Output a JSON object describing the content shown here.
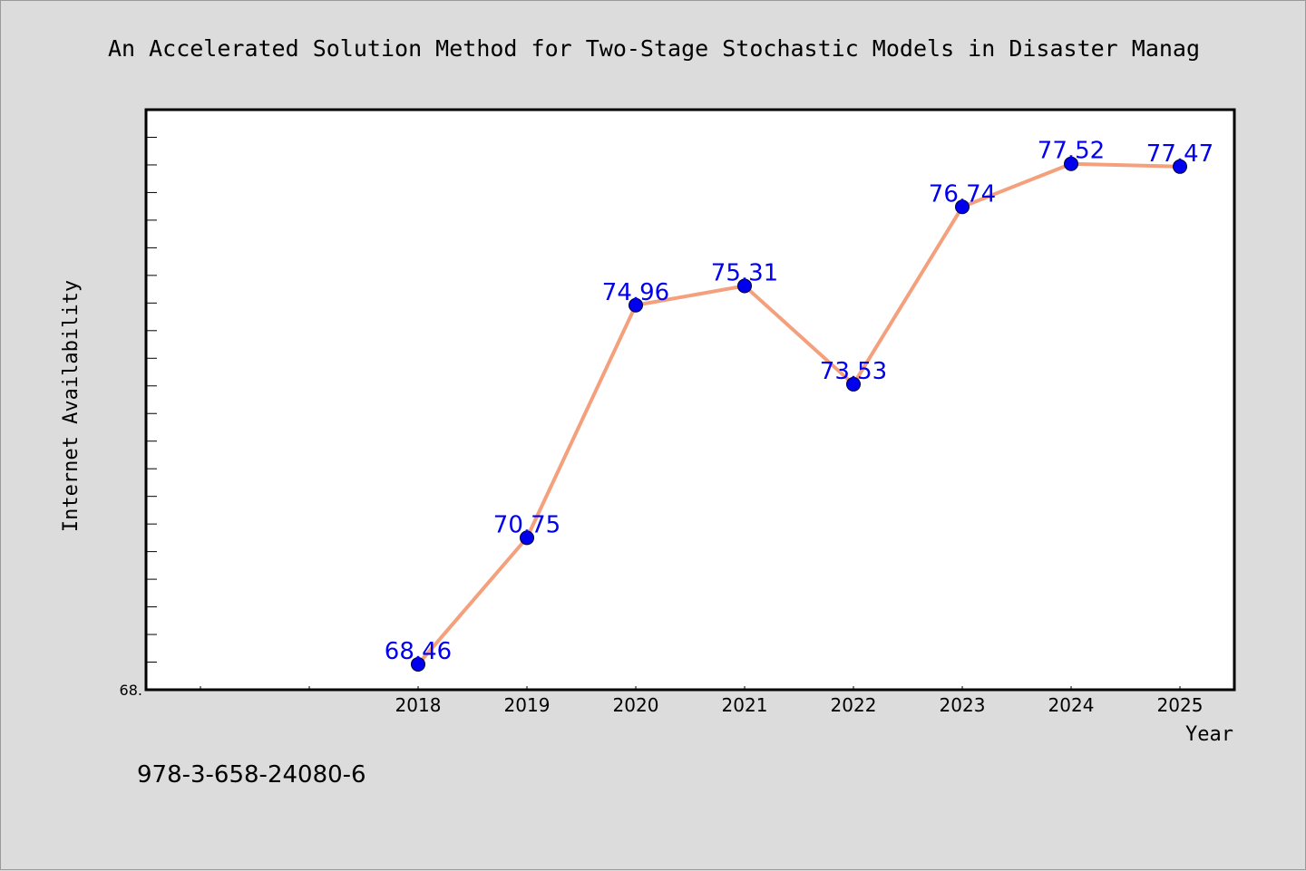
{
  "chart_data": {
    "type": "line",
    "title": "An Accelerated Solution Method for Two-Stage Stochastic Models in Disaster Manag",
    "xlabel": "Year",
    "ylabel": "Internet Availability",
    "categories": [
      "2018",
      "2019",
      "2020",
      "2021",
      "2022",
      "2023",
      "2024",
      "2025"
    ],
    "series": [
      {
        "values": [
          68.46,
          70.75,
          74.96,
          75.31,
          73.53,
          76.74,
          77.52,
          77.47
        ],
        "data_labels": [
          "68.46",
          "70.75",
          "74.96",
          "75.31",
          "73.53",
          "76.74",
          "77.52",
          "77.47"
        ]
      }
    ],
    "ylim": [
      68.0,
      78.5
    ],
    "y_tick_label": "68.",
    "line_color": "#f4a07c",
    "marker_color": "#0000ee",
    "label_color": "#0000ee",
    "grid": false,
    "legend": "none"
  },
  "footer": {
    "isbn": "978-3-658-24080-6"
  }
}
